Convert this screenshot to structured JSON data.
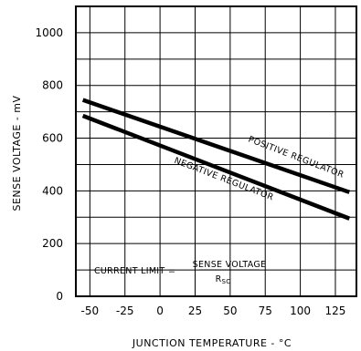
{
  "chart_data": {
    "type": "line",
    "xlabel": "JUNCTION TEMPERATURE - °C",
    "ylabel": "SENSE VOLTAGE - mV",
    "xlim": [
      -60,
      140
    ],
    "ylim": [
      0,
      1100
    ],
    "x_ticks": [
      "-50",
      "-25",
      "0",
      "25",
      "50",
      "75",
      "100",
      "125"
    ],
    "x_tick_values": [
      -50,
      -25,
      0,
      25,
      50,
      75,
      100,
      125
    ],
    "y_ticks": [
      "0",
      "200",
      "400",
      "600",
      "800",
      "1000"
    ],
    "y_tick_values": [
      0,
      200,
      400,
      600,
      800,
      1000
    ],
    "x_grid_values": [
      -50,
      -25,
      0,
      25,
      50,
      75,
      100,
      125
    ],
    "y_grid_values": [
      100,
      200,
      300,
      400,
      500,
      600,
      700,
      800,
      900,
      1000
    ],
    "grid": true,
    "series": [
      {
        "name": "POSITIVE REGULATOR",
        "x": [
          -55,
          135
        ],
        "y": [
          745,
          395
        ]
      },
      {
        "name": "NEGATIVE REGULATOR",
        "x": [
          -55,
          135
        ],
        "y": [
          685,
          295
        ]
      }
    ],
    "annotation": {
      "prefix": "CURRENT LIMIT =",
      "numerator": "SENSE VOLTAGE",
      "denominator_main": "R",
      "denominator_sub": "SC"
    }
  }
}
